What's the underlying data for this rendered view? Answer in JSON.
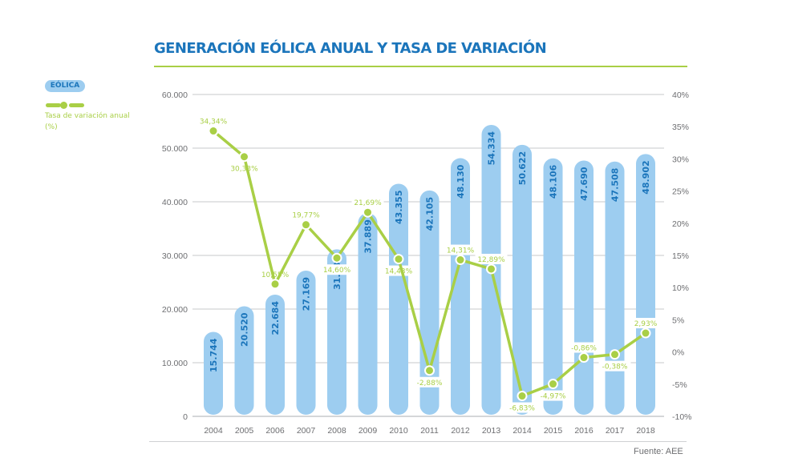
{
  "title": "GENERACIÓN EÓLICA ANUAL Y TASA DE VARIACIÓN",
  "legend": {
    "bar_label": "EÓLICA",
    "line_label": "Tasa de variación anual (%)"
  },
  "source": "Fuente: AEE",
  "colors": {
    "title": "#1b75bb",
    "bar": "#9dcdf0",
    "bar_label": "#1b75bb",
    "line": "#a9cf46",
    "grid": "#c7c9cb",
    "axis_text": "#6d6e71"
  },
  "chart_data": {
    "type": "bar",
    "title": "GENERACIÓN EÓLICA ANUAL Y TASA DE VARIACIÓN",
    "xlabel": "",
    "ylabel": "",
    "categories": [
      "2004",
      "2005",
      "2006",
      "2007",
      "2008",
      "2009",
      "2010",
      "2011",
      "2012",
      "2013",
      "2014",
      "2015",
      "2016",
      "2017",
      "2018"
    ],
    "series": [
      {
        "name": "EÓLICA",
        "type": "bar",
        "axis": "left",
        "values": [
          15744,
          20520,
          22684,
          27169,
          31136,
          37889,
          43355,
          42105,
          48130,
          54334,
          50622,
          48106,
          47690,
          47508,
          48902
        ],
        "labels": [
          "15.744",
          "20.520",
          "22.684",
          "27.169",
          "31.136",
          "37.889",
          "43.355",
          "42.105",
          "48.130",
          "54.334",
          "50.622",
          "48.106",
          "47.690",
          "47.508",
          "48.902"
        ]
      },
      {
        "name": "Tasa de variación anual (%)",
        "type": "line",
        "axis": "right",
        "values": [
          34.34,
          30.33,
          10.55,
          19.77,
          14.6,
          21.69,
          14.43,
          -2.88,
          14.31,
          12.89,
          -6.83,
          -4.97,
          -0.86,
          -0.38,
          2.93
        ],
        "labels": [
          "34,34%",
          "30,33%",
          "10,55%",
          "19,77%",
          "14,60%",
          "21,69%",
          "14,43%",
          "-2,88%",
          "14,31%",
          "12,89%",
          "-6,83%",
          "-4,97%",
          "-0,86%",
          "-0,38%",
          "2,93%"
        ]
      }
    ],
    "y_left": {
      "range": [
        0,
        60000
      ],
      "ticks": [
        0,
        10000,
        20000,
        30000,
        40000,
        50000,
        60000
      ],
      "tick_labels": [
        "0",
        "10.000",
        "20.000",
        "30.000",
        "40.000",
        "50.000",
        "60.000"
      ]
    },
    "y_right": {
      "range": [
        -10,
        40
      ],
      "ticks": [
        -10,
        -5,
        0,
        5,
        10,
        15,
        20,
        25,
        30,
        35,
        40
      ],
      "tick_labels": [
        "-10%",
        "-5%",
        "0%",
        "5%",
        "10%",
        "15%",
        "20%",
        "25%",
        "30%",
        "35%",
        "40%"
      ]
    },
    "grid": true,
    "legend_position": "top-left"
  }
}
